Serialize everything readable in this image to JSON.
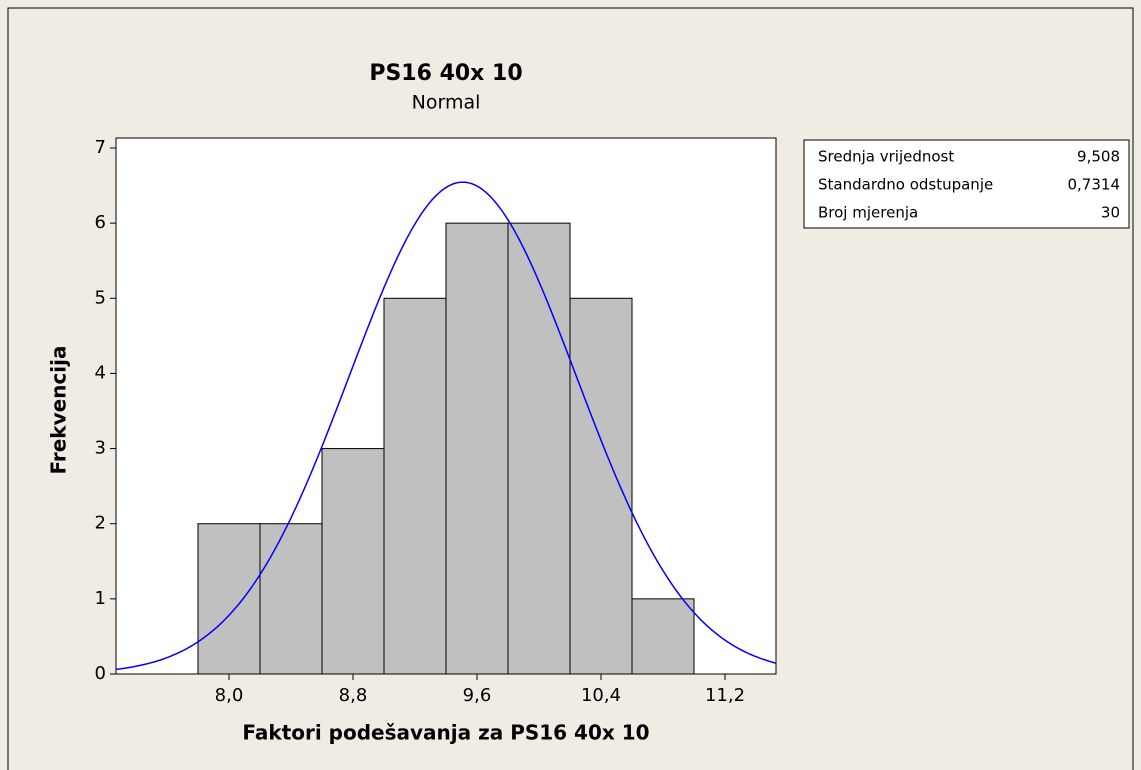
{
  "chart_data": {
    "type": "histogram",
    "title": "PS16 40x 10",
    "subtitle": "Normal",
    "xlabel": "Faktori podešavanja za PS16 40x 10",
    "ylabel": "Frekvencija",
    "bins": [
      7.8,
      8.2,
      8.6,
      9.0,
      9.4,
      9.8,
      10.2,
      10.6,
      11.0
    ],
    "values": [
      2,
      2,
      3,
      5,
      6,
      6,
      5,
      1
    ],
    "color": "#c0c0c0",
    "curve_color": "#0000ff",
    "xlim": [
      7.271,
      11.529
    ],
    "ylim": [
      0,
      7
    ],
    "xticks": [
      {
        "value": 8.0,
        "label": "8,0"
      },
      {
        "value": 8.8,
        "label": "8,8"
      },
      {
        "value": 9.6,
        "label": "9,6"
      },
      {
        "value": 10.4,
        "label": "10,4"
      },
      {
        "value": 11.2,
        "label": "11,2"
      }
    ],
    "yticks": [
      0,
      1,
      2,
      3,
      4,
      5,
      6,
      7
    ],
    "mean": 9.508,
    "stdev": 0.7314,
    "n": 30,
    "stats": [
      {
        "label": "Srednja vrijednost",
        "value": "9,508"
      },
      {
        "label": "Standardno odstupanje",
        "value": "0,7314"
      },
      {
        "label": "Broj mjerenja",
        "value": "30"
      }
    ]
  }
}
